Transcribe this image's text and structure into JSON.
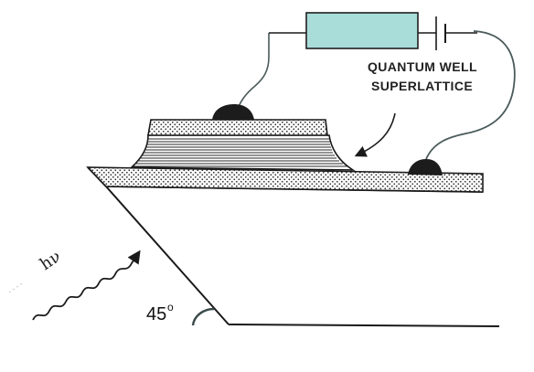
{
  "labels": {
    "structure_line1": "QUANTUM WELL",
    "structure_line2": "SUPERLATTICE",
    "photon": "hν",
    "angle_value": "45",
    "angle_degree": "o"
  },
  "colors": {
    "resistor_fill": "#a9ddd9",
    "resistor_stroke": "#1f1f1f",
    "ink": "#1a1a1a",
    "lead_wire": "#4a5a5a",
    "contact": "#1c1c1c",
    "background": "#ffffff"
  },
  "icons": {
    "resistor": "resistor-icon",
    "battery": "battery-icon",
    "photon_wave": "wavy-arrow-icon"
  }
}
